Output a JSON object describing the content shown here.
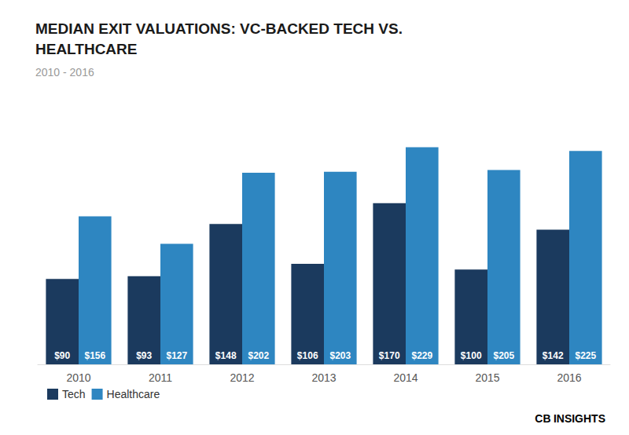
{
  "chart_data": {
    "type": "bar",
    "title": "MEDIAN EXIT VALUATIONS: VC-BACKED TECH VS.\nHEALTHCARE",
    "subtitle": "2010 - 2016",
    "categories": [
      "2010",
      "2011",
      "2012",
      "2013",
      "2014",
      "2015",
      "2016"
    ],
    "series": [
      {
        "name": "Tech",
        "color": "#1b3a5e",
        "values": [
          90,
          93,
          148,
          106,
          170,
          100,
          142
        ],
        "value_labels": [
          "$90",
          "$93",
          "$148",
          "$106",
          "$170",
          "$100",
          "$142"
        ]
      },
      {
        "name": "Healthcare",
        "color": "#2e86c1",
        "values": [
          156,
          127,
          202,
          203,
          229,
          205,
          225
        ],
        "value_labels": [
          "$156",
          "$127",
          "$202",
          "$203",
          "$229",
          "$205",
          "$225"
        ]
      }
    ],
    "ylim": [
      0,
      260
    ],
    "grid": false,
    "legend": "lower left",
    "data_labels": true,
    "tick_labels": "x",
    "annotations": [
      {
        "text": "CB",
        "color": "#1b3a5e"
      },
      {
        "text": "INSIGHTS",
        "color": "#2e86c1"
      }
    ]
  }
}
